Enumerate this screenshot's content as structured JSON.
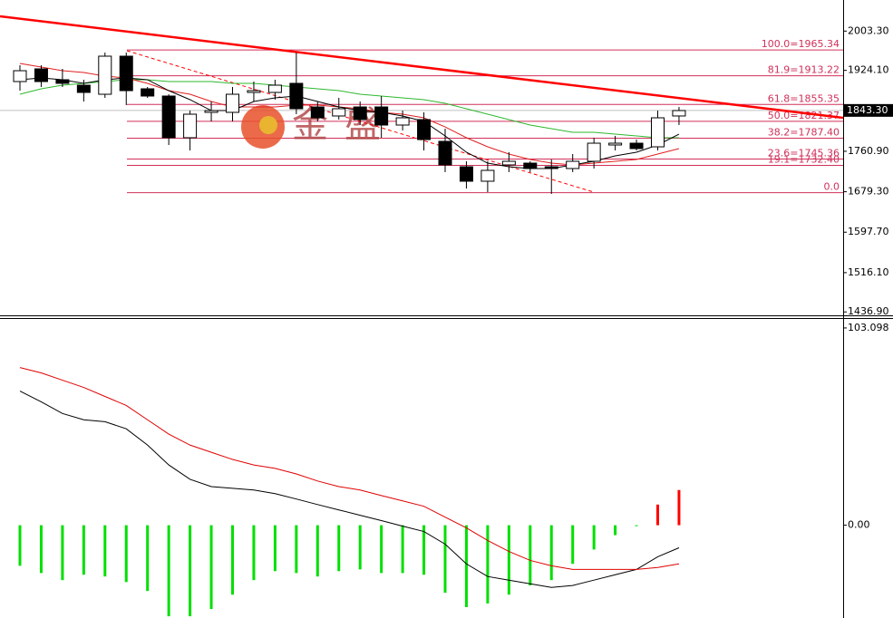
{
  "chart_data": [
    {
      "type": "candlestick",
      "ylim": [
        1430,
        2066
      ],
      "yticks": [
        {
          "value": 2003.3,
          "label": "2003.30"
        },
        {
          "value": 1924.1,
          "label": "1924.10"
        },
        {
          "value": 1760.9,
          "label": "1760.90"
        },
        {
          "value": 1679.3,
          "label": "1679.30"
        },
        {
          "value": 1597.7,
          "label": "1597.70"
        },
        {
          "value": 1516.1,
          "label": "1516.10"
        },
        {
          "value": 1436.9,
          "label": "1436.90"
        }
      ],
      "current_price": {
        "value": 1843.3,
        "label": "1843.30"
      },
      "watermark": "金盛",
      "candles": {
        "open": [
          1901.5,
          1927.1,
          1905.2,
          1894.2,
          1875.9,
          1952.7,
          1886.9,
          1872.3,
          1788.2,
          1839.4,
          1839.4,
          1879.6,
          1879.6,
          1897.9,
          1850.3,
          1832.1,
          1850.3,
          1850.3,
          1813.8,
          1824.8,
          1780.9,
          1729.7,
          1700.5,
          1733.4,
          1737.0,
          1729.7,
          1726.1,
          1740.7,
          1773.6,
          1777.2,
          1769.9,
          1832.1
        ],
        "high": [
          1934.4,
          1934.4,
          1927.1,
          1905.2,
          1960.0,
          1960.0,
          1890.6,
          1875.9,
          1843.0,
          1861.3,
          1890.6,
          1901.5,
          1905.2,
          1960.0,
          1861.3,
          1868.6,
          1861.3,
          1872.3,
          1843.0,
          1839.4,
          1806.5,
          1740.7,
          1740.7,
          1759.0,
          1740.7,
          1744.3,
          1755.3,
          1788.2,
          1791.9,
          1784.5,
          1843.0,
          1850.3
        ],
        "low": [
          1883.2,
          1890.6,
          1890.6,
          1861.3,
          1868.6,
          1854.0,
          1868.6,
          1773.6,
          1762.6,
          1821.1,
          1821.1,
          1861.3,
          1865.0,
          1835.7,
          1821.1,
          1824.8,
          1813.8,
          1788.2,
          1802.8,
          1762.6,
          1718.8,
          1685.9,
          1678.5,
          1718.8,
          1718.8,
          1674.9,
          1718.8,
          1726.1,
          1762.6,
          1762.6,
          1762.6,
          1813.8
        ],
        "close": [
          1923.4,
          1901.5,
          1897.9,
          1879.6,
          1952.7,
          1883.2,
          1872.3,
          1788.2,
          1835.7,
          1843.0,
          1875.9,
          1883.2,
          1894.2,
          1846.7,
          1828.4,
          1846.7,
          1824.8,
          1813.8,
          1828.4,
          1784.5,
          1733.4,
          1700.5,
          1722.4,
          1740.7,
          1726.1,
          1726.1,
          1740.7,
          1777.2,
          1777.2,
          1766.3,
          1828.4,
          1843.0
        ]
      },
      "series": [
        {
          "color": "#2db82d",
          "values": [
            1875.9,
            1886.9,
            1894.2,
            1897.9,
            1901.5,
            1905.2,
            1905.2,
            1901.5,
            1901.5,
            1901.5,
            1897.9,
            1897.9,
            1894.2,
            1890.6,
            1886.9,
            1883.2,
            1875.9,
            1872.3,
            1868.6,
            1865.0,
            1857.7,
            1846.7,
            1835.7,
            1824.8,
            1813.8,
            1806.5,
            1799.2,
            1799.2,
            1795.5,
            1791.9,
            1788.2,
            1788.2
          ]
        },
        {
          "color": "#e02020",
          "values": [
            1938.1,
            1930.8,
            1923.4,
            1919.8,
            1912.5,
            1908.8,
            1897.9,
            1883.2,
            1875.9,
            1861.3,
            1850.3,
            1850.3,
            1850.3,
            1854.0,
            1854.0,
            1850.3,
            1846.7,
            1839.4,
            1835.7,
            1828.4,
            1810.1,
            1788.2,
            1769.9,
            1755.3,
            1744.3,
            1737.0,
            1733.4,
            1737.0,
            1740.7,
            1744.3,
            1755.3,
            1766.3
          ]
        },
        {
          "color": "#000000",
          "values": [
            1905.2,
            1908.8,
            1905.2,
            1897.9,
            1905.2,
            1908.8,
            1905.2,
            1883.2,
            1865.0,
            1843.0,
            1843.0,
            1861.3,
            1868.6,
            1872.3,
            1861.3,
            1850.3,
            1843.0,
            1839.4,
            1832.1,
            1821.1,
            1791.9,
            1759.0,
            1737.0,
            1729.7,
            1726.1,
            1726.1,
            1733.4,
            1740.7,
            1751.7,
            1759.0,
            1773.6,
            1795.5
          ]
        }
      ],
      "trendline": {
        "color": "#ff0000",
        "values": [
          2033.1,
          1828.4
        ]
      },
      "dashed_line": {
        "color": "#ff0000",
        "values": [
          1963.7,
          1678.5
        ]
      },
      "fib": {
        "color": "#d0305a",
        "labels": [
          "100.0=1965.34",
          "81.9=1913.22",
          "61.8=1855.35",
          "50.0=1821.37",
          "38.2=1787.40",
          "23.6=1745.36",
          "19.1=1732.40",
          "0.0"
        ],
        "prices": [
          1965.34,
          1913.22,
          1855.35,
          1821.37,
          1787.4,
          1745.36,
          1732.4,
          1677.4
        ]
      }
    },
    {
      "type": "macd",
      "ylim": [
        -48.5,
        107.8
      ],
      "yticks": [
        103.098,
        {
          "value": 0,
          "label": "0.00"
        }
      ],
      "colors": {
        "negative": "#00e000",
        "positive": "#ff0000"
      },
      "values": [
        -21.2,
        -25.0,
        -28.7,
        -25.9,
        -26.8,
        -29.7,
        -34.4,
        -47.6,
        -47.6,
        -43.8,
        -36.3,
        -28.7,
        -24.0,
        -25.0,
        -26.8,
        -24.0,
        -23.1,
        -25.0,
        -25.0,
        -25.9,
        -35.3,
        -42.8,
        -40.9,
        -36.3,
        -31.5,
        -28.7,
        -20.2,
        -12.7,
        -5.2,
        -0.5,
        10.8,
        18.4
      ],
      "series": [
        {
          "color": "#000000",
          "values": [
            70.1,
            64.5,
            58.4,
            55.1,
            54.1,
            50.4,
            41.9,
            31.5,
            24.0,
            20.2,
            19.3,
            18.4,
            16.5,
            13.7,
            10.8,
            8.0,
            5.2,
            2.4,
            -0.5,
            -3.3,
            -9.9,
            -20.2,
            -26.8,
            -28.7,
            -30.6,
            -32.5,
            -31.5,
            -28.7,
            -25.9,
            -23.1,
            -16.5,
            -11.8
          ]
        },
        {
          "color": "#e00000",
          "values": [
            82.4,
            79.6,
            75.8,
            72.0,
            67.3,
            62.6,
            55.1,
            47.6,
            41.9,
            38.1,
            34.4,
            31.5,
            29.7,
            26.8,
            23.1,
            20.2,
            18.4,
            15.5,
            12.7,
            9.9,
            4.2,
            -1.4,
            -8.0,
            -13.7,
            -18.4,
            -21.2,
            -23.1,
            -23.1,
            -23.1,
            -23.1,
            -22.1,
            -20.2
          ]
        }
      ]
    }
  ]
}
